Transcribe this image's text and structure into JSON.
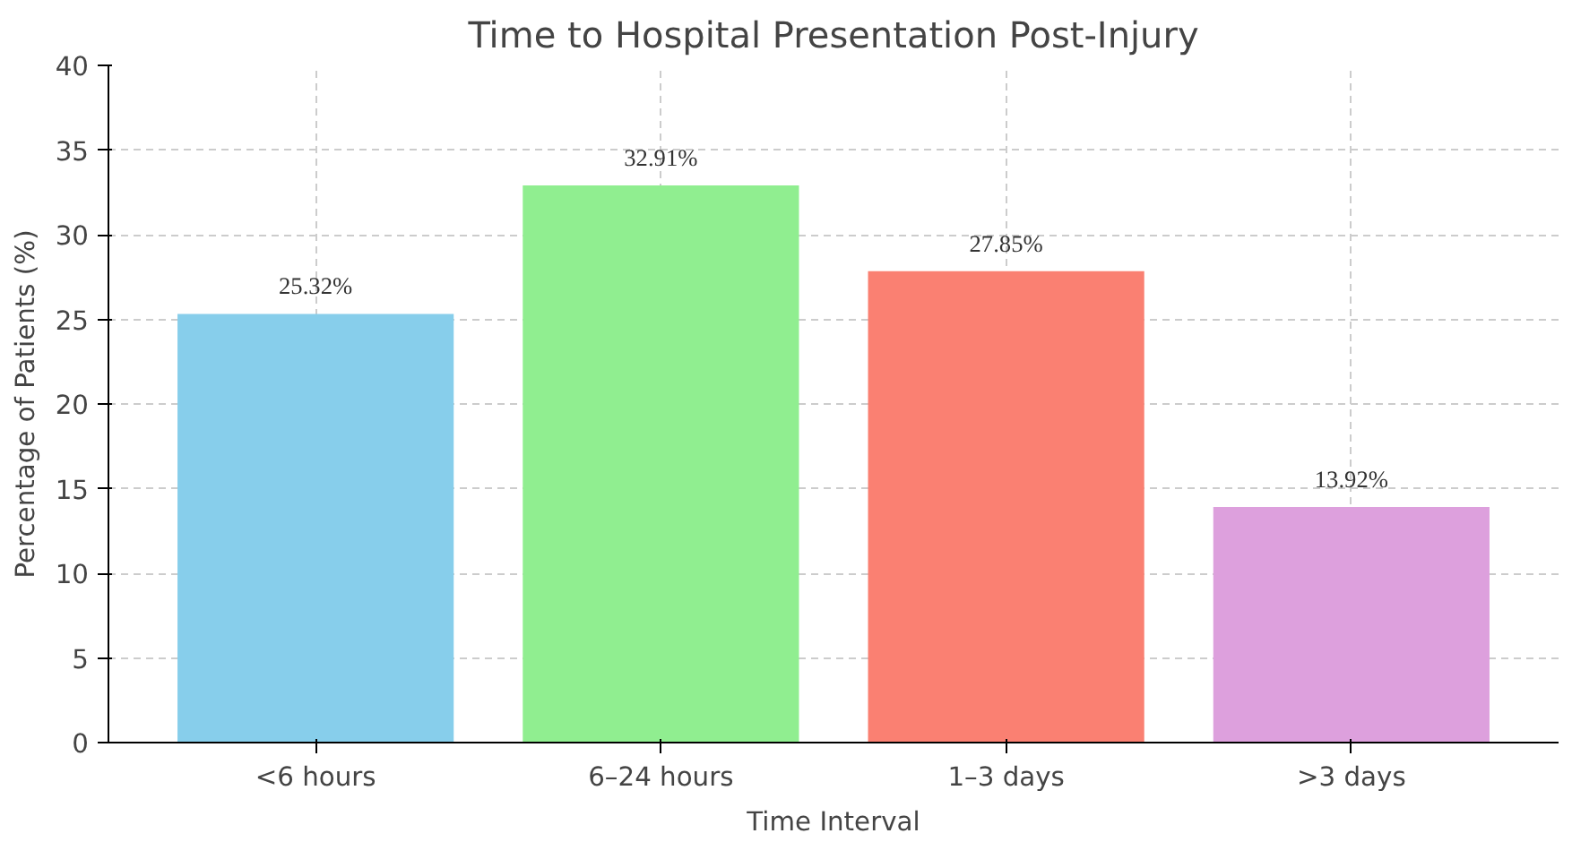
{
  "chart_data": {
    "type": "bar",
    "title": "Time to Hospital Presentation Post-Injury",
    "xlabel": "Time Interval",
    "ylabel": "Percentage of Patients (%)",
    "categories": [
      "<6 hours",
      "6–24 hours",
      "1–3 days",
      ">3 days"
    ],
    "values": [
      25.32,
      32.91,
      27.85,
      13.92
    ],
    "colors": [
      "#87ceeb",
      "#90ee90",
      "#fa8072",
      "#dda0dd"
    ],
    "value_labels": [
      "25.32%",
      "32.91%",
      "27.85%",
      "13.92%"
    ],
    "ylim": [
      0,
      40
    ],
    "yticks": [
      0,
      5,
      10,
      15,
      20,
      25,
      30,
      35,
      40
    ],
    "grid": true
  }
}
